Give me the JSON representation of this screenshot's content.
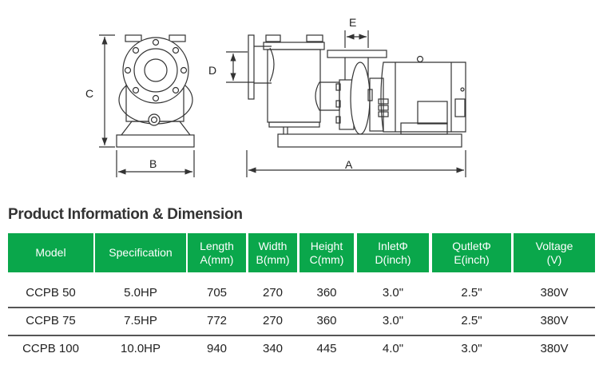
{
  "drawing": {
    "labels": {
      "A": "A",
      "B": "B",
      "C": "C",
      "D": "D",
      "E": "E"
    }
  },
  "title": "Product Information & Dimension",
  "accent_color": "#0aa74b",
  "table": {
    "headers": [
      [
        "Model"
      ],
      [
        "Specification"
      ],
      [
        "Length",
        "A(mm)"
      ],
      [
        "Width",
        "B(mm)"
      ],
      [
        "Height",
        "C(mm)"
      ],
      [
        "InletΦ",
        "D(inch)"
      ],
      [
        "QutletΦ",
        "E(inch)"
      ],
      [
        "Voltage",
        "(V)"
      ]
    ],
    "rows": [
      [
        "CCPB 50",
        "5.0HP",
        "705",
        "270",
        "360",
        "3.0\"",
        "2.5\"",
        "380V"
      ],
      [
        "CCPB 75",
        "7.5HP",
        "772",
        "270",
        "360",
        "3.0\"",
        "2.5\"",
        "380V"
      ],
      [
        "CCPB 100",
        "10.0HP",
        "940",
        "340",
        "445",
        "4.0\"",
        "3.0\"",
        "380V"
      ]
    ]
  }
}
